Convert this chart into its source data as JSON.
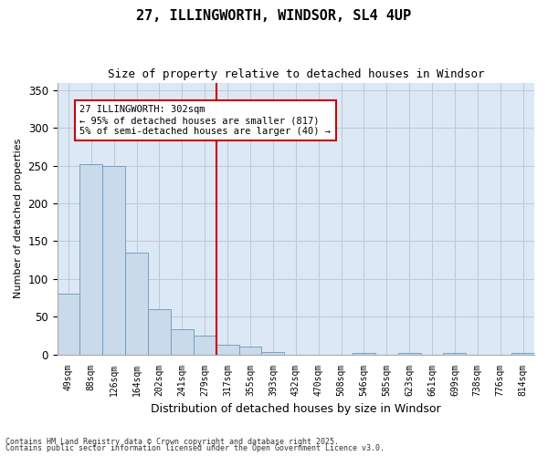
{
  "title": "27, ILLINGWORTH, WINDSOR, SL4 4UP",
  "subtitle": "Size of property relative to detached houses in Windsor",
  "xlabel": "Distribution of detached houses by size in Windsor",
  "ylabel": "Number of detached properties",
  "bar_color": "#c9daea",
  "bar_edge_color": "#6699bb",
  "grid_color": "#c0c8d8",
  "background_color": "#dce8f5",
  "annotation_text": "27 ILLINGWORTH: 302sqm\n← 95% of detached houses are smaller (817)\n5% of semi-detached houses are larger (40) →",
  "annotation_box_color": "#ffffff",
  "annotation_box_edge": "#cc0000",
  "categories": [
    "49sqm",
    "88sqm",
    "126sqm",
    "164sqm",
    "202sqm",
    "241sqm",
    "279sqm",
    "317sqm",
    "355sqm",
    "393sqm",
    "432sqm",
    "470sqm",
    "508sqm",
    "546sqm",
    "585sqm",
    "623sqm",
    "661sqm",
    "699sqm",
    "738sqm",
    "776sqm",
    "814sqm"
  ],
  "values": [
    80,
    252,
    250,
    135,
    60,
    33,
    25,
    13,
    10,
    3,
    0,
    0,
    0,
    2,
    0,
    2,
    0,
    2,
    0,
    0,
    2
  ],
  "ylim": [
    0,
    360
  ],
  "yticks": [
    0,
    50,
    100,
    150,
    200,
    250,
    300,
    350
  ],
  "redline_idx": 6.5,
  "footer1": "Contains HM Land Registry data © Crown copyright and database right 2025.",
  "footer2": "Contains public sector information licensed under the Open Government Licence v3.0."
}
